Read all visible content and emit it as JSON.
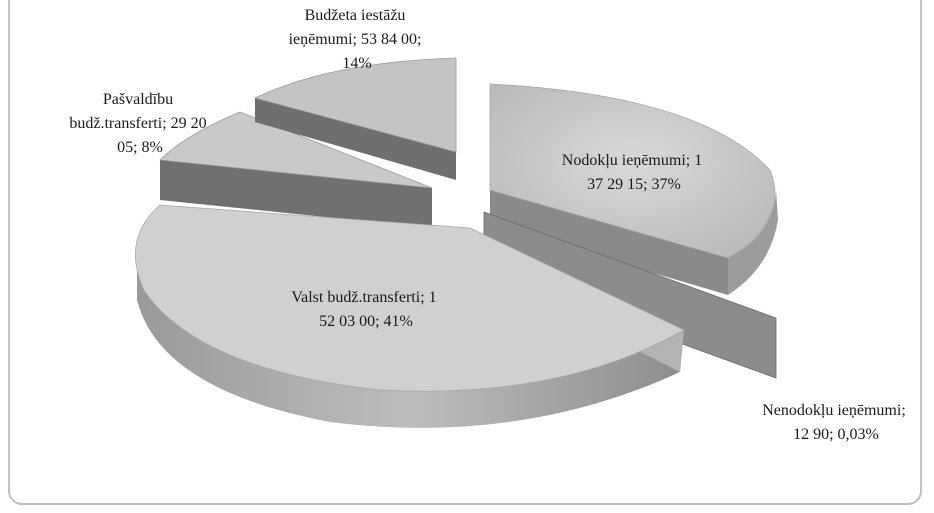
{
  "chart_data": {
    "type": "pie",
    "title": "",
    "slices": [
      {
        "name": "Nodokļu ieņēmumi",
        "value_text": "1 37 29 15",
        "percent": 37,
        "percent_text": "37%",
        "label_lines": [
          "Nodokļu ieņēmumi;  1",
          "37 29 15; 37%"
        ]
      },
      {
        "name": "Nenodokļu ieņēmumi",
        "value_text": "12 90",
        "percent": 0.03,
        "percent_text": "0,03%",
        "label_lines": [
          "Nenodokļu ieņēmumi;",
          "12 90; 0,03%"
        ]
      },
      {
        "name": "Valst budž.transferti",
        "value_text": "1 52 03 00",
        "percent": 41,
        "percent_text": "41%",
        "label_lines": [
          "Valst budž.transferti; 1",
          "52 03 00; 41%"
        ]
      },
      {
        "name": "Pašvaldību budž.transferti",
        "value_text": "29 20 05",
        "percent": 8,
        "percent_text": "8%",
        "label_lines": [
          "Pašvaldību",
          "budž.transferti;  29 20",
          "05; 8%"
        ]
      },
      {
        "name": "Budžeta iestāžu ieņēmumi",
        "value_text": "53 84 00",
        "percent": 14,
        "percent_text": "14%",
        "label_lines": [
          "Budžeta iestāžu",
          "ieņēmumi;  53 84 00;",
          "14%"
        ]
      }
    ],
    "style": "3d-exploded",
    "colors": {
      "top": "#c8c8c8",
      "side": "#8a8a8a",
      "dark_side": "#6b6b6b"
    }
  }
}
